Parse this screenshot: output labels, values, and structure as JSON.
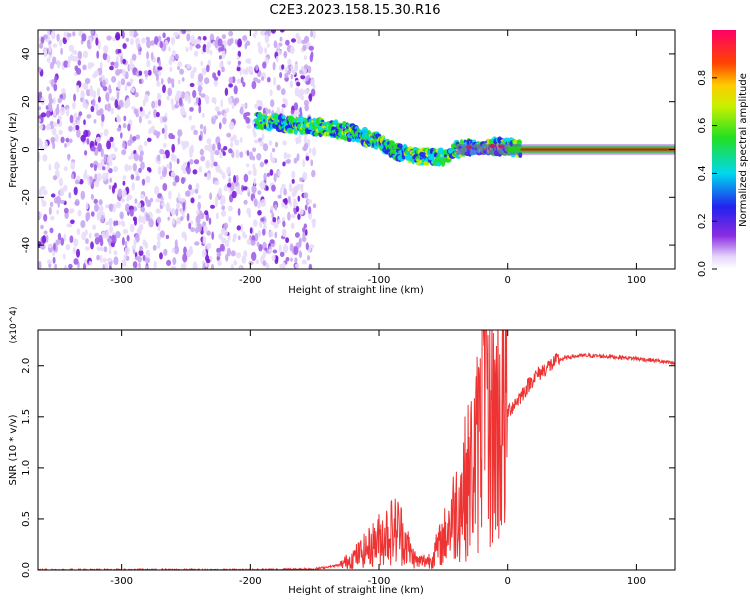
{
  "title": "C2E3.2023.158.15.30.R16",
  "chart_data": [
    {
      "type": "heatmap",
      "title": "C2E3.2023.158.15.30.R16",
      "xlabel": "Height of straight line (km)",
      "ylabel": "Frequency (Hz)",
      "xlim": [
        -365,
        130
      ],
      "ylim": [
        -50,
        50
      ],
      "x_ticks": [
        -300,
        -200,
        -100,
        0,
        100
      ],
      "y_ticks": [
        -40,
        -20,
        0,
        20,
        40
      ],
      "colorbar": {
        "label": "Normalized spectral amplitude",
        "range": [
          0,
          1
        ],
        "ticks": [
          0.0,
          0.2,
          0.4,
          0.6,
          0.8
        ],
        "colormap": "rainbow (white→violet→blue→cyan→green→yellow→orange→red→magenta)"
      },
      "features": {
        "noise_region_x": [
          -365,
          -150
        ],
        "signal_track": [
          {
            "x": -195,
            "freq": 12
          },
          {
            "x": -160,
            "freq": 10
          },
          {
            "x": -140,
            "freq": 9
          },
          {
            "x": -120,
            "freq": 7
          },
          {
            "x": -100,
            "freq": 3
          },
          {
            "x": -85,
            "freq": -1
          },
          {
            "x": -70,
            "freq": -3
          },
          {
            "x": -50,
            "freq": -3
          },
          {
            "x": -40,
            "freq": 0
          },
          {
            "x": -30,
            "freq": 1
          },
          {
            "x": -10,
            "freq": 1.5
          },
          {
            "x": 10,
            "freq": 0.5
          },
          {
            "x": 130,
            "freq": 0
          }
        ]
      },
      "grid": false
    },
    {
      "type": "line",
      "xlabel": "Height of straight line (km)",
      "ylabel": "SNR (10 * v/v)",
      "yscale_label": "(x10^4)",
      "xlim": [
        -365,
        130
      ],
      "ylim": [
        0,
        2.35
      ],
      "x_ticks": [
        -300,
        -200,
        -100,
        0,
        100
      ],
      "y_ticks": [
        0.0,
        0.5,
        1.0,
        1.5,
        2.0
      ],
      "series": [
        {
          "color": "#ee3333",
          "x": [
            -365,
            -300,
            -200,
            -150,
            -130,
            -120,
            -110,
            -100,
            -95,
            -90,
            -85,
            -80,
            -75,
            -70,
            -60,
            -50,
            -40,
            -30,
            -25,
            -20,
            -15,
            -10,
            -5,
            0,
            10,
            20,
            30,
            40,
            50,
            60,
            80,
            100,
            115,
            130
          ],
          "y": [
            0.0,
            0.0,
            0.0,
            0.01,
            0.05,
            0.12,
            0.2,
            0.3,
            0.35,
            0.38,
            0.4,
            0.3,
            0.15,
            0.08,
            0.1,
            0.3,
            0.6,
            0.9,
            1.1,
            1.3,
            1.35,
            1.45,
            1.5,
            1.55,
            1.7,
            1.88,
            1.98,
            2.06,
            2.09,
            2.1,
            2.09,
            2.07,
            2.05,
            2.02
          ]
        }
      ],
      "grid": false
    }
  ]
}
